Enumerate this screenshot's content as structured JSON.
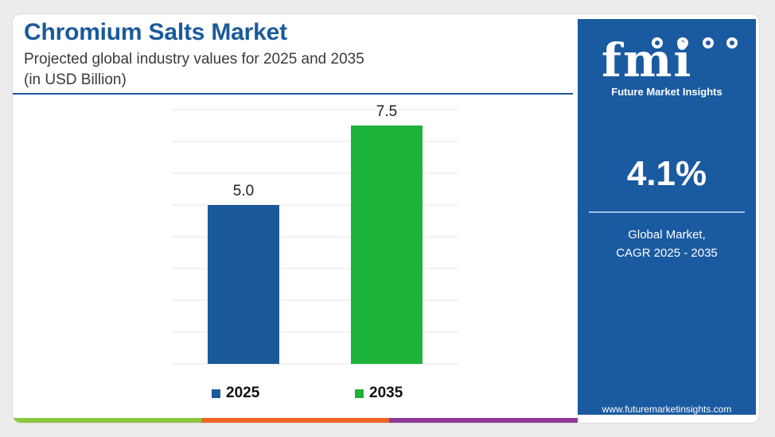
{
  "header": {
    "title": "Chromium Salts Market",
    "subtitle_line1": "Projected global industry values for 2025 and 2035",
    "subtitle_line2": "(in USD Billion)"
  },
  "chart_data": {
    "type": "bar",
    "categories": [
      "2025",
      "2035"
    ],
    "values": [
      5.0,
      7.5
    ],
    "data_labels": [
      "5.0",
      "7.5"
    ],
    "colors": [
      "#1a5a9a",
      "#1db33b"
    ],
    "legend": [
      {
        "label": "2025",
        "color": "#1a5a9a"
      },
      {
        "label": "2035",
        "color": "#1db33b"
      }
    ],
    "legend_position": "bottom",
    "ylim": [
      0,
      8
    ],
    "grid": true,
    "title": "",
    "xlabel": "",
    "ylabel": ""
  },
  "sidebar": {
    "logo_letters": "fmi",
    "logo_text": "Future Market Insights",
    "cagr_value": "4.1%",
    "caption_line1": "Global Market,",
    "caption_line2": "CAGR 2025 - 2035",
    "website": "www.futuremarketinsights.com",
    "background_color": "#1a5aa0"
  },
  "footer": {
    "strip_colors": [
      "#8dc63f",
      "#f26522",
      "#8e3a96"
    ]
  }
}
